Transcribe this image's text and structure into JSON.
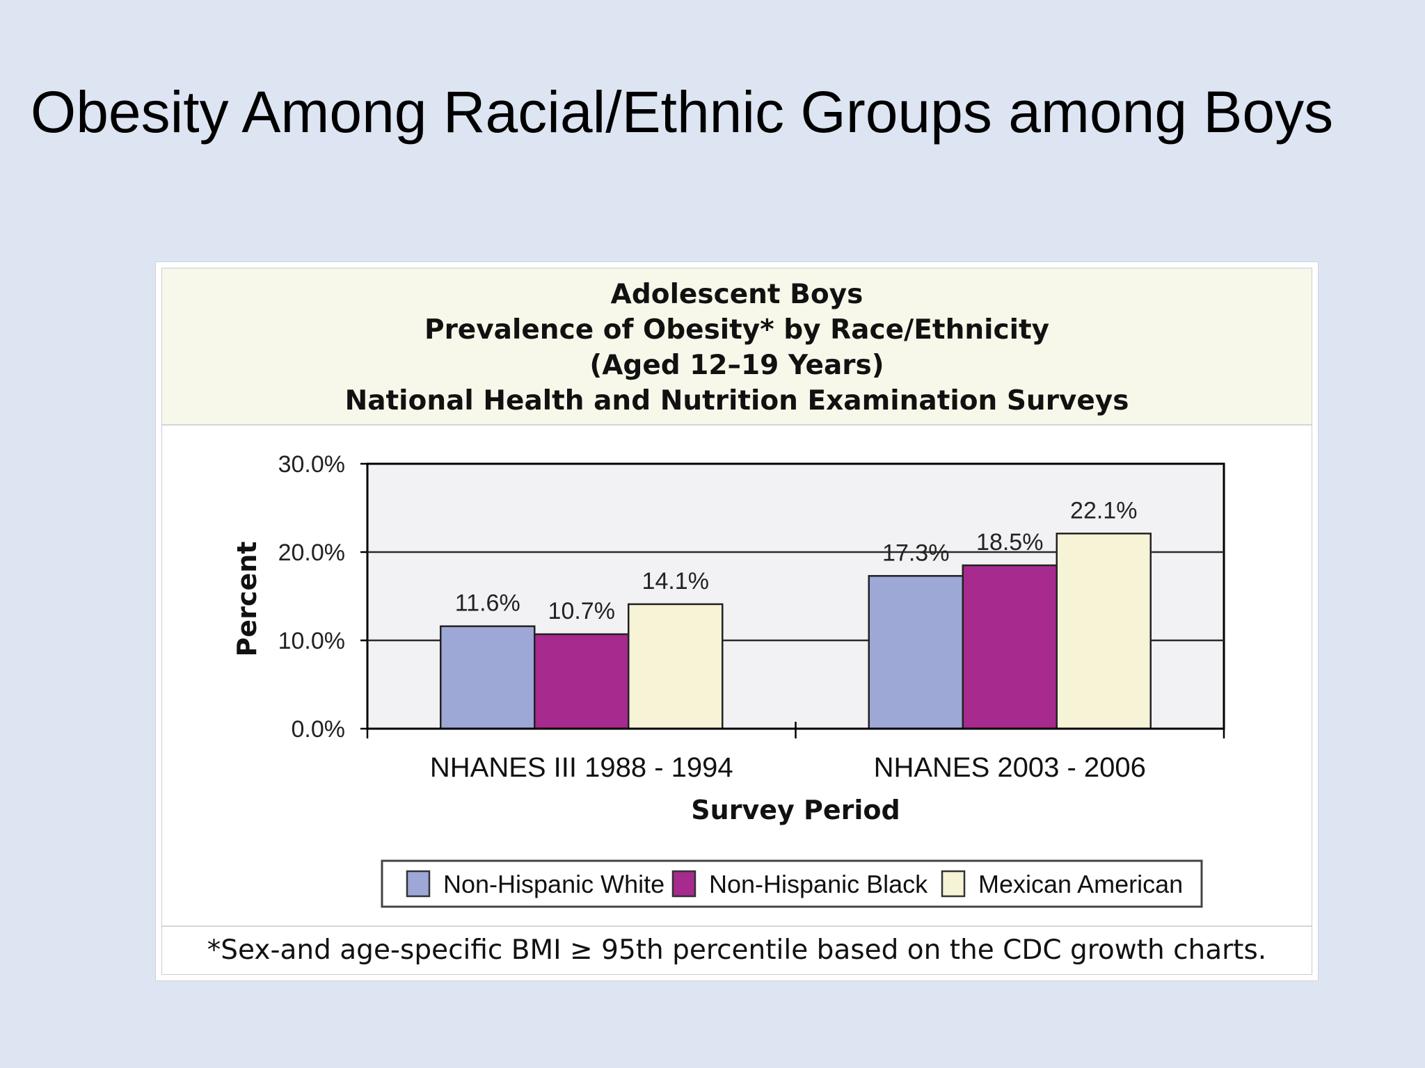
{
  "slide": {
    "title": "Obesity Among Racial/Ethnic Groups among Boys"
  },
  "chart_data": {
    "type": "bar",
    "title": [
      "Adolescent Boys",
      "Prevalence of Obesity* by Race/Ethnicity",
      "(Aged 12–19 Years)",
      "National Health and Nutrition Examination Surveys"
    ],
    "xlabel": "Survey Period",
    "ylabel": "Percent",
    "categories": [
      "NHANES III 1988 - 1994",
      "NHANES 2003 - 2006"
    ],
    "series": [
      {
        "name": "Non-Hispanic White",
        "values": [
          11.6,
          17.3
        ],
        "labels": [
          "11.6%",
          "17.3%"
        ],
        "color": "#9da8d6"
      },
      {
        "name": "Non-Hispanic Black",
        "values": [
          10.7,
          18.5
        ],
        "labels": [
          "10.7%",
          "18.5%"
        ],
        "color": "#a72a8e"
      },
      {
        "name": "Mexican American",
        "values": [
          14.1,
          22.1
        ],
        "labels": [
          "14.1%",
          "22.1%"
        ],
        "color": "#f6f3d6"
      }
    ],
    "yticks": [
      0,
      10,
      20,
      30
    ],
    "ytick_labels": [
      "0.0%",
      "10.0%",
      "20.0%",
      "30.0%"
    ],
    "ylim": [
      0,
      30
    ],
    "grid": true,
    "legend": "bottom",
    "footnote": "*Sex-and age-specific BMI ≥ 95th percentile based on the CDC growth charts.",
    "plot_background": "#f2f2f4"
  }
}
